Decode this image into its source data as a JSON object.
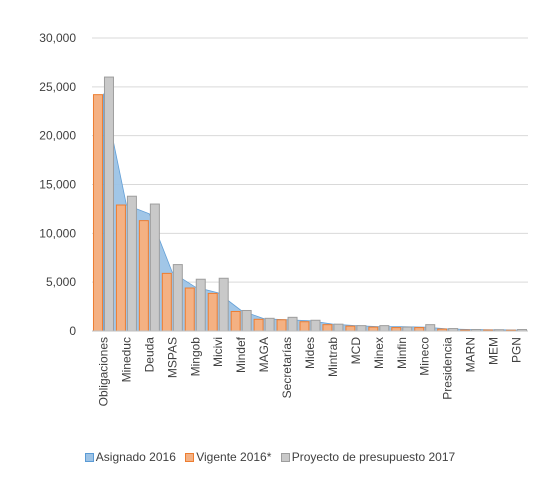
{
  "chart_data": {
    "type": "bar",
    "categories": [
      "Obligaciones",
      "Mineduc",
      "Deuda",
      "MSPAS",
      "Mingob",
      "Micivi",
      "Mindef",
      "MAGA",
      "Secretarías",
      "Mides",
      "Mintrab",
      "MCD",
      "Minex",
      "Minfin",
      "Mineco",
      "Presidencia",
      "MARN",
      "MEM",
      "PGN"
    ],
    "series": [
      {
        "name": "Asignado 2016",
        "kind": "area",
        "color": "#9dc3e6",
        "values": [
          24300,
          12900,
          12000,
          6000,
          4500,
          3900,
          2100,
          1250,
          1150,
          1050,
          700,
          550,
          450,
          450,
          400,
          220,
          150,
          120,
          100
        ]
      },
      {
        "name": "Vigente 2016*",
        "kind": "bar",
        "color": "#f4b183",
        "edge": "#ed7d31",
        "values": [
          24200,
          12900,
          11300,
          5900,
          4400,
          3850,
          2000,
          1200,
          1150,
          950,
          650,
          500,
          400,
          350,
          350,
          200,
          100,
          100,
          80
        ]
      },
      {
        "name": "Proyecto de presupuesto 2017",
        "kind": "bar",
        "color": "#c9c9c9",
        "edge": "#9e9e9e",
        "values": [
          26000,
          13800,
          13000,
          6800,
          5300,
          5400,
          2100,
          1300,
          1400,
          1100,
          700,
          550,
          550,
          400,
          650,
          250,
          150,
          130,
          150
        ]
      }
    ],
    "ylim": [
      0,
      30000
    ],
    "yticks": [
      "0",
      "5,000",
      "10,000",
      "15,000",
      "20,000",
      "25,000",
      "30,000"
    ],
    "grid": true,
    "legend": "bottom"
  },
  "legend": {
    "items": [
      {
        "label": "Asignado 2016",
        "color": "#9dc3e6",
        "edge": "#5b9bd5"
      },
      {
        "label": "Vigente 2016*",
        "color": "#f4b183",
        "edge": "#ed7d31"
      },
      {
        "label": "Proyecto de presupuesto 2017",
        "color": "#c9c9c9",
        "edge": "#9e9e9e"
      }
    ]
  }
}
